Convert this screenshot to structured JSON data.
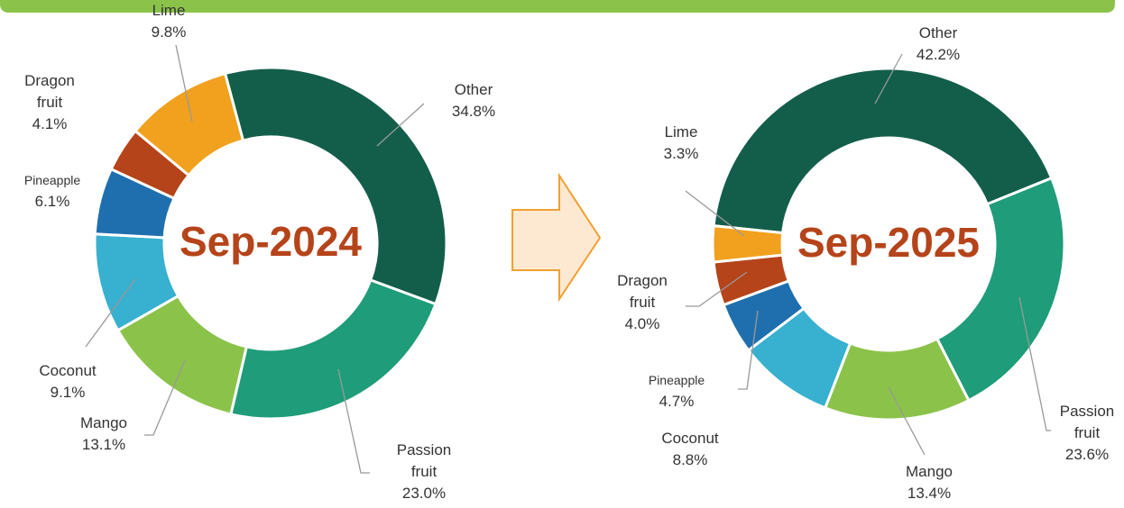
{
  "chart_data": [
    {
      "type": "pie",
      "donut": true,
      "center_label": "Sep-2024",
      "categories": [
        "Other",
        "Passion fruit",
        "Mango",
        "Coconut",
        "Pineapple",
        "Dragon fruit",
        "Lime"
      ],
      "values": [
        34.8,
        23.0,
        13.1,
        9.1,
        6.1,
        4.1,
        9.8
      ],
      "value_labels": [
        "34.8%",
        "23.0%",
        "13.1%",
        "9.1%",
        "6.1%",
        "4.1%",
        "9.8%"
      ],
      "colors": [
        "#135e4b",
        "#1f9c79",
        "#8bc34a",
        "#38b0d0",
        "#1f6fae",
        "#b5441a",
        "#f1a11e"
      ]
    },
    {
      "type": "pie",
      "donut": true,
      "center_label": "Sep-2025",
      "categories": [
        "Other",
        "Passion fruit",
        "Mango",
        "Coconut",
        "Pineapple",
        "Dragon fruit",
        "Lime"
      ],
      "values": [
        42.2,
        23.6,
        13.4,
        8.8,
        4.7,
        4.0,
        3.3
      ],
      "value_labels": [
        "42.2%",
        "23.6%",
        "13.4%",
        "8.8%",
        "4.7%",
        "4.0%",
        "3.3%"
      ],
      "colors": [
        "#135e4b",
        "#1f9c79",
        "#8bc34a",
        "#38b0d0",
        "#1f6fae",
        "#b5441a",
        "#f1a11e"
      ]
    }
  ]
}
